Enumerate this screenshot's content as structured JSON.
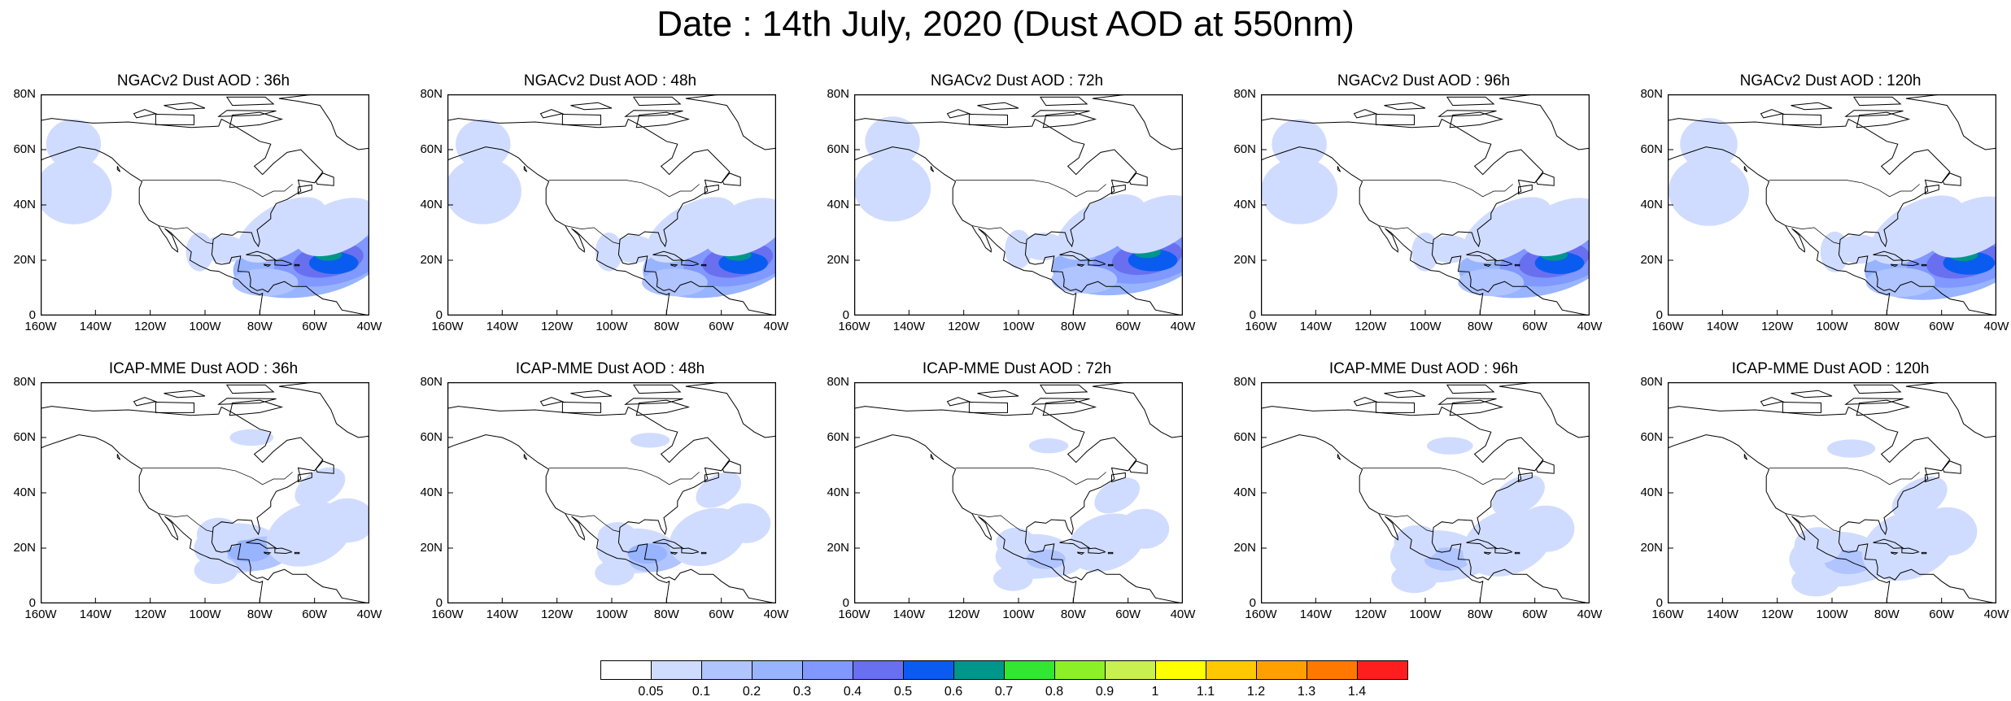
{
  "title": "Date : 14th July, 2020 (Dust AOD at 550nm)",
  "chart_data": {
    "type": "heatmap",
    "map_extent": {
      "lon": [
        -160,
        -40
      ],
      "lat": [
        0,
        80
      ]
    },
    "y_ticks": [
      "0",
      "20N",
      "40N",
      "60N",
      "80N"
    ],
    "x_ticks": [
      "160W",
      "140W",
      "120W",
      "100W",
      "80W",
      "60W",
      "40W"
    ],
    "panels": [
      {
        "title": "NGACv2 Dust AOD : 36h",
        "model": "ngac",
        "lead": 36
      },
      {
        "title": "NGACv2 Dust AOD : 48h",
        "model": "ngac",
        "lead": 48
      },
      {
        "title": "NGACv2 Dust AOD : 72h",
        "model": "ngac",
        "lead": 72
      },
      {
        "title": "NGACv2 Dust AOD : 96h",
        "model": "ngac",
        "lead": 96
      },
      {
        "title": "NGACv2 Dust AOD : 120h",
        "model": "ngac",
        "lead": 120
      },
      {
        "title": "ICAP-MME Dust AOD : 36h",
        "model": "icap",
        "lead": 36
      },
      {
        "title": "ICAP-MME Dust AOD : 48h",
        "model": "icap",
        "lead": 48
      },
      {
        "title": "ICAP-MME Dust AOD : 72h",
        "model": "icap",
        "lead": 72
      },
      {
        "title": "ICAP-MME Dust AOD : 96h",
        "model": "icap",
        "lead": 96
      },
      {
        "title": "ICAP-MME Dust AOD : 120h",
        "model": "icap",
        "lead": 120
      }
    ],
    "colorbar": {
      "levels": [
        "0.05",
        "0.1",
        "0.2",
        "0.3",
        "0.4",
        "0.5",
        "0.6",
        "0.7",
        "0.8",
        "0.9",
        "1",
        "1.1",
        "1.2",
        "1.3",
        "1.4"
      ],
      "colors": [
        "#ffffff",
        "#d0dcff",
        "#b0c4ff",
        "#98b4ff",
        "#8098ff",
        "#6870f0",
        "#0a5cf0",
        "#00968c",
        "#32e632",
        "#8cf028",
        "#c8f050",
        "#ffff00",
        "#ffc800",
        "#ffa000",
        "#ff7800",
        "#ff1e1e"
      ]
    }
  }
}
